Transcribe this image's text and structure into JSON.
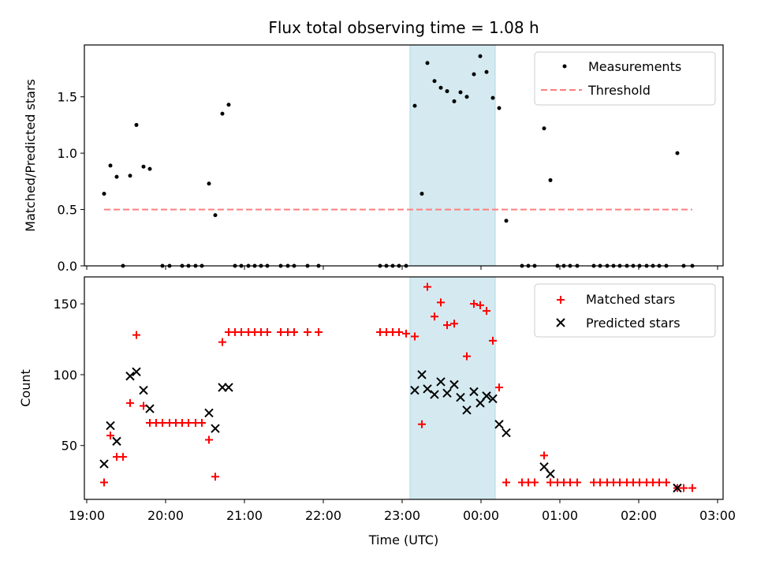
{
  "chart_data": [
    {
      "type": "scatter",
      "title": "Flux total observing time = 1.08 h",
      "xlabel": "",
      "ylabel": "Matched/Predicted stars",
      "xlim": [
        18.97,
        27.07
      ],
      "ylim": [
        0,
        1.96
      ],
      "yticks": [
        0.0,
        0.5,
        1.0,
        1.5
      ],
      "ytick_labels": [
        "0.0",
        "0.5",
        "1.0",
        "1.5"
      ],
      "shaded_span": [
        23.1,
        24.18
      ],
      "shade_color": "#d4eaf0",
      "legend": {
        "position": "top-right",
        "entries": [
          "Measurements",
          "Threshold"
        ]
      },
      "series": [
        {
          "name": "Measurements",
          "marker": "dot",
          "color": "#000000",
          "points": [
            [
              19.22,
              0.64
            ],
            [
              19.3,
              0.89
            ],
            [
              19.38,
              0.79
            ],
            [
              19.46,
              0.0
            ],
            [
              19.55,
              0.8
            ],
            [
              19.63,
              1.25
            ],
            [
              19.72,
              0.88
            ],
            [
              19.8,
              0.86
            ],
            [
              19.96,
              0.0
            ],
            [
              20.05,
              0.0
            ],
            [
              20.21,
              0.0
            ],
            [
              20.29,
              0.0
            ],
            [
              20.38,
              0.0
            ],
            [
              20.46,
              0.0
            ],
            [
              20.55,
              0.73
            ],
            [
              20.63,
              0.45
            ],
            [
              20.72,
              1.35
            ],
            [
              20.8,
              1.43
            ],
            [
              20.88,
              0.0
            ],
            [
              20.96,
              0.0
            ],
            [
              21.05,
              0.0
            ],
            [
              21.13,
              0.0
            ],
            [
              21.21,
              0.0
            ],
            [
              21.29,
              0.0
            ],
            [
              21.46,
              0.0
            ],
            [
              21.55,
              0.0
            ],
            [
              21.63,
              0.0
            ],
            [
              21.8,
              0.0
            ],
            [
              21.94,
              0.0
            ],
            [
              22.72,
              0.0
            ],
            [
              22.8,
              0.0
            ],
            [
              22.88,
              0.0
            ],
            [
              22.96,
              0.0
            ],
            [
              23.05,
              0.0
            ],
            [
              23.16,
              1.42
            ],
            [
              23.25,
              0.64
            ],
            [
              23.32,
              1.8
            ],
            [
              23.41,
              1.64
            ],
            [
              23.49,
              1.58
            ],
            [
              23.57,
              1.55
            ],
            [
              23.66,
              1.46
            ],
            [
              23.74,
              1.54
            ],
            [
              23.82,
              1.5
            ],
            [
              23.91,
              1.7
            ],
            [
              23.99,
              1.86
            ],
            [
              24.07,
              1.72
            ],
            [
              24.15,
              1.49
            ],
            [
              24.23,
              1.4
            ],
            [
              24.32,
              0.4
            ],
            [
              24.52,
              0.0
            ],
            [
              24.6,
              0.0
            ],
            [
              24.68,
              0.0
            ],
            [
              24.8,
              1.22
            ],
            [
              24.88,
              0.76
            ],
            [
              24.97,
              0.0
            ],
            [
              25.05,
              0.0
            ],
            [
              25.13,
              0.0
            ],
            [
              25.22,
              0.0
            ],
            [
              25.43,
              0.0
            ],
            [
              25.51,
              0.0
            ],
            [
              25.6,
              0.0
            ],
            [
              25.68,
              0.0
            ],
            [
              25.76,
              0.0
            ],
            [
              25.85,
              0.0
            ],
            [
              25.93,
              0.0
            ],
            [
              26.01,
              0.0
            ],
            [
              26.1,
              0.0
            ],
            [
              26.18,
              0.0
            ],
            [
              26.26,
              0.0
            ],
            [
              26.35,
              0.0
            ],
            [
              26.49,
              1.0
            ],
            [
              26.57,
              0.0
            ],
            [
              26.68,
              0.0
            ]
          ]
        },
        {
          "name": "Threshold",
          "style": "dashed-line",
          "color": "#ff7f7f",
          "points": [
            [
              19.22,
              0.5
            ],
            [
              26.68,
              0.5
            ]
          ]
        }
      ]
    },
    {
      "type": "scatter",
      "title": "",
      "xlabel": "Time (UTC)",
      "ylabel": "Count",
      "xlim": [
        18.97,
        27.07
      ],
      "ylim": [
        12,
        169
      ],
      "xticks": [
        19,
        20,
        21,
        22,
        23,
        24,
        25,
        26,
        27
      ],
      "xtick_labels": [
        "19:00",
        "20:00",
        "21:00",
        "22:00",
        "23:00",
        "00:00",
        "01:00",
        "02:00",
        "03:00"
      ],
      "yticks": [
        50,
        100,
        150
      ],
      "ytick_labels": [
        "50",
        "100",
        "150"
      ],
      "shaded_span": [
        23.1,
        24.18
      ],
      "shade_color": "#d4eaf0",
      "legend": {
        "position": "top-right",
        "entries": [
          "Matched stars",
          "Predicted stars"
        ]
      },
      "series": [
        {
          "name": "Matched stars",
          "marker": "plus",
          "color": "#ff0000",
          "points": [
            [
              19.22,
              24
            ],
            [
              19.3,
              57
            ],
            [
              19.38,
              42
            ],
            [
              19.46,
              42
            ],
            [
              19.55,
              80
            ],
            [
              19.63,
              128
            ],
            [
              19.72,
              78
            ],
            [
              19.8,
              66
            ],
            [
              19.88,
              66
            ],
            [
              19.96,
              66
            ],
            [
              20.05,
              66
            ],
            [
              20.13,
              66
            ],
            [
              20.21,
              66
            ],
            [
              20.29,
              66
            ],
            [
              20.38,
              66
            ],
            [
              20.46,
              66
            ],
            [
              20.55,
              54
            ],
            [
              20.63,
              28
            ],
            [
              20.72,
              123
            ],
            [
              20.8,
              130
            ],
            [
              20.88,
              130
            ],
            [
              20.96,
              130
            ],
            [
              21.05,
              130
            ],
            [
              21.13,
              130
            ],
            [
              21.21,
              130
            ],
            [
              21.29,
              130
            ],
            [
              21.46,
              130
            ],
            [
              21.55,
              130
            ],
            [
              21.63,
              130
            ],
            [
              21.8,
              130
            ],
            [
              21.94,
              130
            ],
            [
              22.72,
              130
            ],
            [
              22.8,
              130
            ],
            [
              22.88,
              130
            ],
            [
              22.96,
              130
            ],
            [
              23.05,
              129
            ],
            [
              23.16,
              127
            ],
            [
              23.25,
              65
            ],
            [
              23.32,
              162
            ],
            [
              23.41,
              141
            ],
            [
              23.49,
              151
            ],
            [
              23.57,
              135
            ],
            [
              23.66,
              136
            ],
            [
              23.82,
              113
            ],
            [
              23.91,
              150
            ],
            [
              23.99,
              149
            ],
            [
              24.07,
              145
            ],
            [
              24.15,
              124
            ],
            [
              24.23,
              91
            ],
            [
              24.32,
              24
            ],
            [
              24.52,
              24
            ],
            [
              24.6,
              24
            ],
            [
              24.68,
              24
            ],
            [
              24.8,
              43
            ],
            [
              24.88,
              24
            ],
            [
              24.97,
              24
            ],
            [
              25.05,
              24
            ],
            [
              25.13,
              24
            ],
            [
              25.22,
              24
            ],
            [
              25.43,
              24
            ],
            [
              25.51,
              24
            ],
            [
              25.6,
              24
            ],
            [
              25.68,
              24
            ],
            [
              25.76,
              24
            ],
            [
              25.85,
              24
            ],
            [
              25.93,
              24
            ],
            [
              26.01,
              24
            ],
            [
              26.1,
              24
            ],
            [
              26.18,
              24
            ],
            [
              26.26,
              24
            ],
            [
              26.35,
              24
            ],
            [
              26.49,
              20
            ],
            [
              26.57,
              20
            ],
            [
              26.68,
              20
            ]
          ]
        },
        {
          "name": "Predicted stars",
          "marker": "x",
          "color": "#000000",
          "points": [
            [
              19.22,
              37
            ],
            [
              19.3,
              64
            ],
            [
              19.38,
              53
            ],
            [
              19.55,
              99
            ],
            [
              19.63,
              102
            ],
            [
              19.72,
              89
            ],
            [
              19.8,
              76
            ],
            [
              20.55,
              73
            ],
            [
              20.63,
              62
            ],
            [
              20.72,
              91
            ],
            [
              20.8,
              91
            ],
            [
              23.16,
              89
            ],
            [
              23.25,
              100
            ],
            [
              23.32,
              90
            ],
            [
              23.41,
              86
            ],
            [
              23.49,
              95
            ],
            [
              23.57,
              87
            ],
            [
              23.66,
              93
            ],
            [
              23.74,
              84
            ],
            [
              23.82,
              75
            ],
            [
              23.91,
              88
            ],
            [
              23.99,
              80
            ],
            [
              24.07,
              85
            ],
            [
              24.15,
              83
            ],
            [
              24.23,
              65
            ],
            [
              24.32,
              59
            ],
            [
              24.8,
              35
            ],
            [
              24.88,
              30
            ],
            [
              26.49,
              20
            ]
          ]
        }
      ]
    }
  ]
}
